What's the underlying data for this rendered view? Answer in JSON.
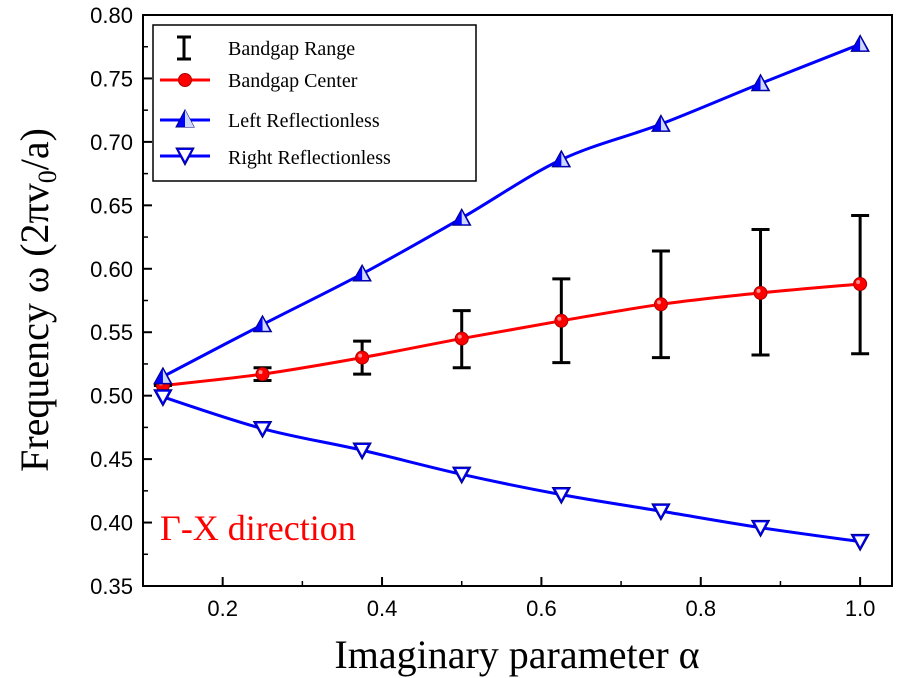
{
  "chart_data": {
    "type": "line",
    "xlabel": "Imaginary parameter α",
    "ylabel": "Frequency ω (2πv0/a)",
    "xlim": [
      0.1,
      1.04
    ],
    "ylim": [
      0.35,
      0.8
    ],
    "xticks": [
      0.2,
      0.4,
      0.6,
      0.8,
      1.0
    ],
    "xtick_labels": [
      "0.2",
      "0.4",
      "0.6",
      "0.8",
      "1.0"
    ],
    "yticks": [
      0.35,
      0.4,
      0.45,
      0.5,
      0.55,
      0.6,
      0.65,
      0.7,
      0.75,
      0.8
    ],
    "ytick_labels": [
      "0.35",
      "0.40",
      "0.45",
      "0.50",
      "0.55",
      "0.60",
      "0.65",
      "0.70",
      "0.75",
      "0.80"
    ],
    "grid": false,
    "legend_position": "top-left",
    "x": [
      0.125,
      0.25,
      0.375,
      0.5,
      0.625,
      0.75,
      0.875,
      1.0
    ],
    "series": [
      {
        "name": "Bandgap Range",
        "type": "errorbar",
        "color": "#000000",
        "low": [
          0.508,
          0.512,
          0.517,
          0.522,
          0.526,
          0.53,
          0.532,
          0.533
        ],
        "high": [
          0.509,
          0.522,
          0.543,
          0.567,
          0.592,
          0.614,
          0.631,
          0.642
        ]
      },
      {
        "name": "Bandgap Center",
        "color": "#ff0000",
        "marker": "circle",
        "values": [
          0.508,
          0.517,
          0.53,
          0.545,
          0.559,
          0.572,
          0.581,
          0.588
        ]
      },
      {
        "name": "Left Reflectionless",
        "color": "#0000ff",
        "marker": "triangle-up",
        "values": [
          0.515,
          0.556,
          0.596,
          0.64,
          0.686,
          0.714,
          0.746,
          0.777
        ]
      },
      {
        "name": "Right Reflectionless",
        "color": "#0000ff",
        "marker": "triangle-down",
        "values": [
          0.499,
          0.474,
          0.457,
          0.438,
          0.422,
          0.409,
          0.396,
          0.385
        ]
      }
    ],
    "annotations": [
      {
        "text": "Γ-X direction",
        "color": "#ff0000"
      }
    ]
  }
}
